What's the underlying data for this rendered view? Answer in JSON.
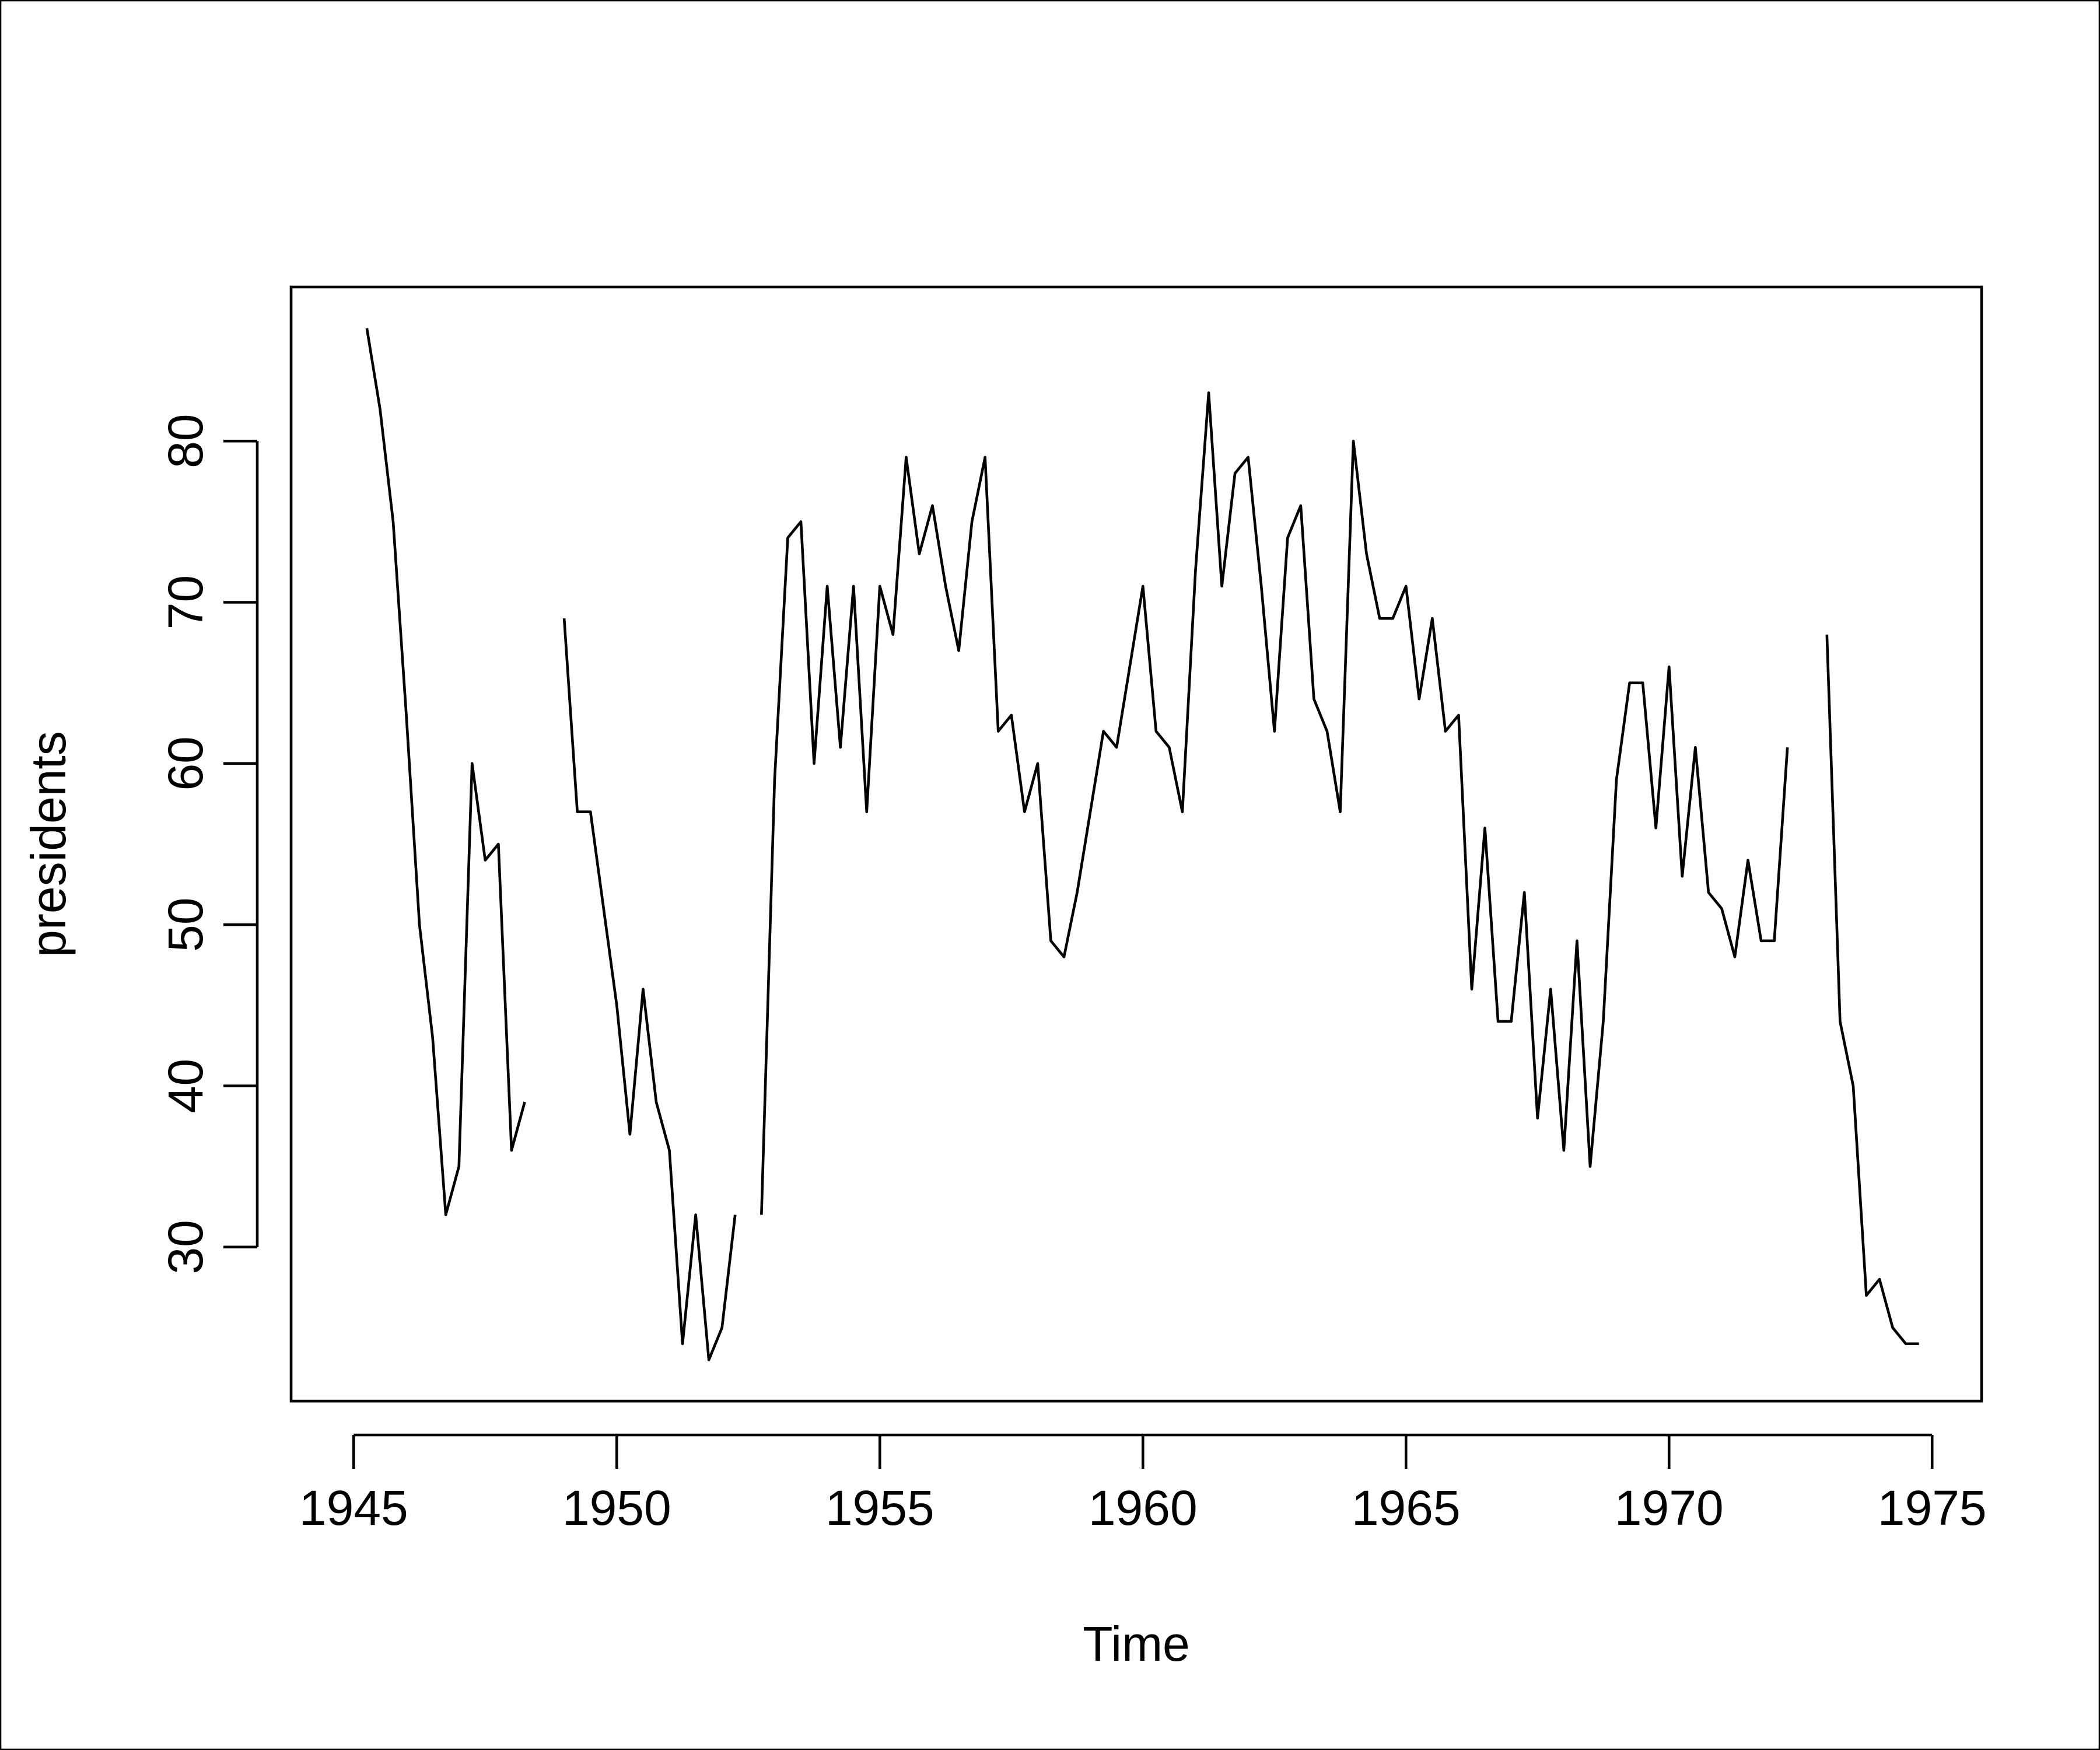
{
  "chart_data": {
    "type": "line",
    "xlabel": "Time",
    "ylabel": "presidents",
    "x": [
      1945,
      1945.25,
      1945.5,
      1945.75,
      1946,
      1946.25,
      1946.5,
      1946.75,
      1947,
      1947.25,
      1947.5,
      1947.75,
      1948,
      1948.25,
      1948.5,
      1948.75,
      1949,
      1949.25,
      1949.5,
      1949.75,
      1950,
      1950.25,
      1950.5,
      1950.75,
      1951,
      1951.25,
      1951.5,
      1951.75,
      1952,
      1952.25,
      1952.5,
      1952.75,
      1953,
      1953.25,
      1953.5,
      1953.75,
      1954,
      1954.25,
      1954.5,
      1954.75,
      1955,
      1955.25,
      1955.5,
      1955.75,
      1956,
      1956.25,
      1956.5,
      1956.75,
      1957,
      1957.25,
      1957.5,
      1957.75,
      1958,
      1958.25,
      1958.5,
      1958.75,
      1959,
      1959.25,
      1959.5,
      1959.75,
      1960,
      1960.25,
      1960.5,
      1960.75,
      1961,
      1961.25,
      1961.5,
      1961.75,
      1962,
      1962.25,
      1962.5,
      1962.75,
      1963,
      1963.25,
      1963.5,
      1963.75,
      1964,
      1964.25,
      1964.5,
      1964.75,
      1965,
      1965.25,
      1965.5,
      1965.75,
      1966,
      1966.25,
      1966.5,
      1966.75,
      1967,
      1967.25,
      1967.5,
      1967.75,
      1968,
      1968.25,
      1968.5,
      1968.75,
      1969,
      1969.25,
      1969.5,
      1969.75,
      1970,
      1970.25,
      1970.5,
      1970.75,
      1971,
      1971.25,
      1971.5,
      1971.75,
      1972,
      1972.25,
      1972.5,
      1972.75,
      1973,
      1973.25,
      1973.5,
      1973.75,
      1974,
      1974.25,
      1974.5,
      1974.75
    ],
    "values": [
      null,
      87,
      82,
      75,
      63,
      50,
      43,
      32,
      35,
      60,
      54,
      55,
      36,
      39,
      null,
      null,
      69,
      57,
      57,
      51,
      45,
      37,
      46,
      39,
      36,
      24,
      32,
      23,
      25,
      32,
      null,
      32,
      59,
      74,
      75,
      60,
      71,
      61,
      71,
      57,
      71,
      68,
      79,
      73,
      76,
      71,
      67,
      75,
      79,
      62,
      63,
      57,
      60,
      49,
      48,
      52,
      57,
      62,
      61,
      66,
      71,
      62,
      61,
      57,
      72,
      83,
      71,
      78,
      79,
      71,
      62,
      74,
      76,
      64,
      62,
      57,
      80,
      73,
      69,
      69,
      71,
      64,
      69,
      62,
      63,
      46,
      56,
      44,
      44,
      52,
      38,
      46,
      36,
      49,
      35,
      44,
      59,
      65,
      65,
      56,
      66,
      53,
      61,
      52,
      51,
      48,
      54,
      49,
      49,
      61,
      null,
      null,
      68,
      44,
      40,
      27,
      28,
      25,
      24,
      24
    ],
    "color": "#000000",
    "xlim": [
      1943.81,
      1975.94
    ],
    "ylim": [
      20.44,
      89.56
    ],
    "xticks": [
      1945,
      1950,
      1955,
      1960,
      1965,
      1970,
      1975
    ],
    "yticks": [
      30,
      40,
      50,
      60,
      70,
      80
    ]
  }
}
